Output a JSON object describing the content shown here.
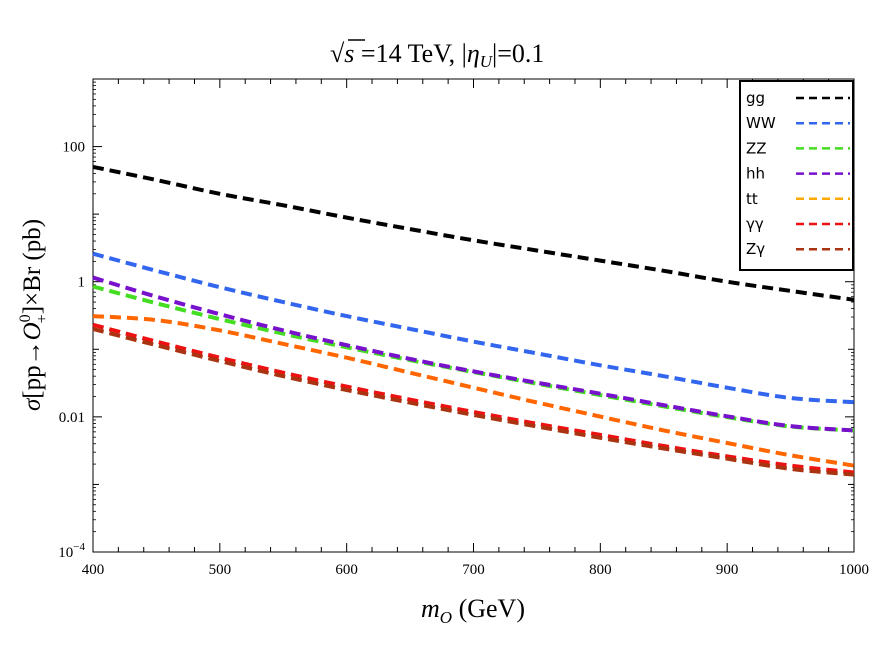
{
  "chart_data": {
    "type": "line",
    "title_parts": {
      "sqrt": "√",
      "s": "s",
      "energy": " =14 TeV, |",
      "eta": "η",
      "eta_sub": "U",
      "eta_val": "|=0.1"
    },
    "xlabel_parts": {
      "m": "m",
      "m_sub": "O",
      "unit": " (GeV)"
    },
    "ylabel_parts": {
      "sigma": "σ",
      "pre": "[pp→",
      "O": "O",
      "O_sup": "0",
      "O_sub": "+",
      "post": "]×Br (pb)"
    },
    "x_axis": {
      "range": [
        400,
        1000
      ],
      "ticks": [
        400,
        500,
        600,
        700,
        800,
        900,
        1000
      ],
      "tick_labels": [
        "400",
        "500",
        "600",
        "700",
        "800",
        "900",
        "1000"
      ]
    },
    "y_axis": {
      "scale": "log",
      "range": [
        0.0001,
        1000
      ],
      "labeled_ticks": [
        0.0001,
        0.01,
        1,
        100
      ],
      "tick_labels": [
        {
          "text": "10",
          "sup": "−4"
        },
        {
          "text": "0.01"
        },
        {
          "text": "1"
        },
        {
          "text": "100"
        }
      ]
    },
    "legend_position": "top-right",
    "x": [
      400,
      450,
      500,
      550,
      600,
      650,
      700,
      750,
      800,
      850,
      900,
      950,
      1000
    ],
    "series": [
      {
        "name": "gg",
        "color": "#000000",
        "values": [
          50,
          32,
          20,
          13.5,
          8.9,
          6.0,
          4.1,
          2.9,
          2.05,
          1.45,
          1.0,
          0.73,
          0.54
        ]
      },
      {
        "name": "WW",
        "color": "#3366ee",
        "values": [
          2.6,
          1.45,
          0.83,
          0.5,
          0.31,
          0.2,
          0.13,
          0.087,
          0.058,
          0.04,
          0.027,
          0.019,
          0.0165
        ]
      },
      {
        "name": "ZZ",
        "color": "#44dd22",
        "values": [
          0.85,
          0.48,
          0.28,
          0.17,
          0.107,
          0.069,
          0.046,
          0.031,
          0.021,
          0.0143,
          0.0099,
          0.0072,
          0.0063
        ]
      },
      {
        "name": "hh",
        "color": "#7711cc",
        "values": [
          1.15,
          0.6,
          0.33,
          0.19,
          0.115,
          0.072,
          0.047,
          0.032,
          0.022,
          0.0149,
          0.0102,
          0.0073,
          0.0063
        ]
      },
      {
        "name": "tt",
        "color": "#ffaa00",
        "values": [
          0.31,
          0.27,
          0.19,
          0.12,
          0.075,
          0.045,
          0.027,
          0.0163,
          0.0101,
          0.0063,
          0.0041,
          0.0027,
          0.0019
        ]
      },
      {
        "name": "γγ",
        "color": "#ee1111",
        "values": [
          0.23,
          0.13,
          0.075,
          0.045,
          0.028,
          0.018,
          0.0118,
          0.0079,
          0.0054,
          0.0037,
          0.0026,
          0.0019,
          0.0015
        ]
      },
      {
        "name": "Zγ",
        "color": "#aa3311",
        "values": [
          0.2,
          0.115,
          0.067,
          0.04,
          0.025,
          0.0162,
          0.0107,
          0.0072,
          0.0049,
          0.0034,
          0.0024,
          0.0017,
          0.0014
        ]
      },
      {
        "name": "",
        "color": "#ff6600",
        "values": [
          0.31,
          0.27,
          0.19,
          0.12,
          0.075,
          0.045,
          0.027,
          0.0163,
          0.0101,
          0.0063,
          0.0041,
          0.0027,
          0.0019
        ]
      }
    ]
  }
}
